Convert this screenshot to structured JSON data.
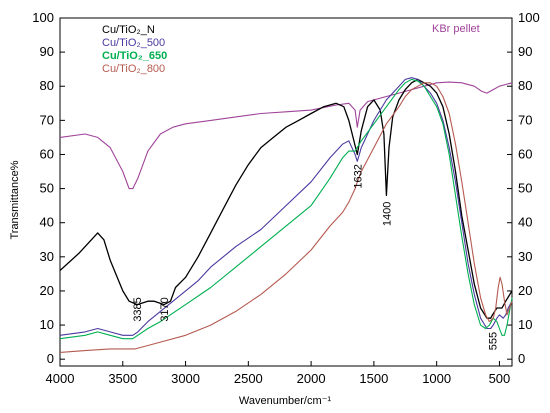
{
  "chart_data": {
    "type": "line",
    "xlabel": "Wavenumber/cm⁻¹",
    "ylabel": "Transmittance%",
    "xlim": [
      4000,
      400
    ],
    "ylim": [
      -2,
      100
    ],
    "x_ticks": [
      4000,
      3500,
      3000,
      2500,
      2000,
      1500,
      1000,
      500
    ],
    "y_ticks": [
      0,
      10,
      20,
      30,
      40,
      50,
      60,
      70,
      80,
      90,
      100
    ],
    "legend_position": "top-left",
    "grid": false,
    "series": [
      {
        "name": "KBr pellet",
        "color": "#a0449a",
        "points": [
          [
            4000,
            65
          ],
          [
            3800,
            66
          ],
          [
            3700,
            65
          ],
          [
            3600,
            62
          ],
          [
            3500,
            55
          ],
          [
            3450,
            50
          ],
          [
            3420,
            50
          ],
          [
            3380,
            53
          ],
          [
            3300,
            61
          ],
          [
            3200,
            66
          ],
          [
            3100,
            68
          ],
          [
            3000,
            69
          ],
          [
            2800,
            70
          ],
          [
            2600,
            71
          ],
          [
            2400,
            72
          ],
          [
            2200,
            72.5
          ],
          [
            2000,
            73
          ],
          [
            1800,
            74.5
          ],
          [
            1700,
            75
          ],
          [
            1650,
            73
          ],
          [
            1632,
            68
          ],
          [
            1610,
            73
          ],
          [
            1550,
            75.5
          ],
          [
            1400,
            77
          ],
          [
            1300,
            78
          ],
          [
            1200,
            79
          ],
          [
            1100,
            80
          ],
          [
            1000,
            81
          ],
          [
            900,
            81.2
          ],
          [
            800,
            81
          ],
          [
            700,
            80
          ],
          [
            640,
            78.5
          ],
          [
            600,
            78
          ],
          [
            550,
            79
          ],
          [
            500,
            80
          ],
          [
            450,
            80.5
          ],
          [
            400,
            81
          ]
        ]
      },
      {
        "name": "Cu/TiO₂_N",
        "color": "#000000",
        "points": [
          [
            4000,
            26
          ],
          [
            3850,
            31
          ],
          [
            3700,
            37
          ],
          [
            3650,
            35
          ],
          [
            3600,
            29
          ],
          [
            3500,
            20
          ],
          [
            3450,
            17
          ],
          [
            3385,
            16
          ],
          [
            3300,
            17
          ],
          [
            3250,
            17
          ],
          [
            3170,
            16
          ],
          [
            3120,
            17
          ],
          [
            3080,
            21
          ],
          [
            3000,
            24
          ],
          [
            2900,
            30
          ],
          [
            2800,
            37
          ],
          [
            2700,
            44
          ],
          [
            2600,
            51
          ],
          [
            2500,
            57
          ],
          [
            2400,
            62
          ],
          [
            2300,
            65
          ],
          [
            2200,
            68
          ],
          [
            2100,
            70
          ],
          [
            2000,
            72
          ],
          [
            1900,
            74
          ],
          [
            1800,
            75
          ],
          [
            1740,
            74
          ],
          [
            1700,
            70
          ],
          [
            1632,
            60
          ],
          [
            1600,
            67
          ],
          [
            1550,
            74
          ],
          [
            1500,
            76
          ],
          [
            1450,
            73
          ],
          [
            1420,
            66
          ],
          [
            1400,
            48
          ],
          [
            1380,
            62
          ],
          [
            1350,
            71
          ],
          [
            1300,
            76
          ],
          [
            1250,
            79
          ],
          [
            1200,
            81
          ],
          [
            1150,
            82
          ],
          [
            1100,
            81
          ],
          [
            1050,
            80
          ],
          [
            1000,
            78
          ],
          [
            950,
            74
          ],
          [
            900,
            66
          ],
          [
            850,
            55
          ],
          [
            800,
            42
          ],
          [
            750,
            32
          ],
          [
            700,
            22
          ],
          [
            650,
            15
          ],
          [
            600,
            12
          ],
          [
            570,
            12
          ],
          [
            555,
            13
          ],
          [
            520,
            15
          ],
          [
            480,
            15
          ],
          [
            450,
            17
          ],
          [
            400,
            20
          ]
        ]
      },
      {
        "name": "Cu/TiO₂_500",
        "color": "#4a3aa0",
        "points": [
          [
            4000,
            7
          ],
          [
            3800,
            8
          ],
          [
            3700,
            9
          ],
          [
            3600,
            8
          ],
          [
            3500,
            7
          ],
          [
            3420,
            7
          ],
          [
            3380,
            8
          ],
          [
            3300,
            11
          ],
          [
            3200,
            14
          ],
          [
            3100,
            17
          ],
          [
            3000,
            20
          ],
          [
            2900,
            23
          ],
          [
            2800,
            27
          ],
          [
            2600,
            33
          ],
          [
            2400,
            38
          ],
          [
            2200,
            45
          ],
          [
            2000,
            52
          ],
          [
            1850,
            59
          ],
          [
            1750,
            63
          ],
          [
            1700,
            64
          ],
          [
            1650,
            60
          ],
          [
            1632,
            58
          ],
          [
            1600,
            62
          ],
          [
            1550,
            66
          ],
          [
            1500,
            70
          ],
          [
            1400,
            76
          ],
          [
            1300,
            80
          ],
          [
            1250,
            82
          ],
          [
            1200,
            82.5
          ],
          [
            1150,
            82
          ],
          [
            1100,
            80
          ],
          [
            1050,
            78
          ],
          [
            1000,
            75
          ],
          [
            950,
            70
          ],
          [
            900,
            62
          ],
          [
            850,
            52
          ],
          [
            800,
            40
          ],
          [
            750,
            28
          ],
          [
            700,
            19
          ],
          [
            650,
            12
          ],
          [
            600,
            9
          ],
          [
            570,
            9
          ],
          [
            550,
            10
          ],
          [
            520,
            12
          ],
          [
            500,
            13
          ],
          [
            470,
            12
          ],
          [
            450,
            13
          ],
          [
            430,
            15
          ],
          [
            400,
            17
          ]
        ]
      },
      {
        "name": "Cu/TiO₂_650",
        "color": "#00b050",
        "points": [
          [
            4000,
            6
          ],
          [
            3800,
            7
          ],
          [
            3700,
            8
          ],
          [
            3600,
            7
          ],
          [
            3500,
            6
          ],
          [
            3420,
            6
          ],
          [
            3380,
            7
          ],
          [
            3300,
            9
          ],
          [
            3200,
            11
          ],
          [
            3000,
            16
          ],
          [
            2800,
            21
          ],
          [
            2600,
            27
          ],
          [
            2400,
            33
          ],
          [
            2200,
            39
          ],
          [
            2000,
            45
          ],
          [
            1850,
            53
          ],
          [
            1750,
            59
          ],
          [
            1700,
            61
          ],
          [
            1650,
            61
          ],
          [
            1600,
            64
          ],
          [
            1500,
            69
          ],
          [
            1400,
            74
          ],
          [
            1300,
            79
          ],
          [
            1250,
            81
          ],
          [
            1200,
            82
          ],
          [
            1150,
            81.5
          ],
          [
            1100,
            80
          ],
          [
            1050,
            77
          ],
          [
            1000,
            74
          ],
          [
            950,
            69
          ],
          [
            900,
            60
          ],
          [
            850,
            48
          ],
          [
            800,
            36
          ],
          [
            750,
            25
          ],
          [
            700,
            16
          ],
          [
            650,
            10
          ],
          [
            610,
            9
          ],
          [
            580,
            10
          ],
          [
            550,
            12
          ],
          [
            520,
            11
          ],
          [
            500,
            9
          ],
          [
            480,
            7
          ],
          [
            460,
            7
          ],
          [
            440,
            10
          ],
          [
            420,
            14
          ],
          [
            400,
            18
          ]
        ]
      },
      {
        "name": "Cu/TiO₂_800",
        "color": "#b55a50",
        "points": [
          [
            4000,
            2
          ],
          [
            3800,
            2.5
          ],
          [
            3600,
            3
          ],
          [
            3500,
            3
          ],
          [
            3400,
            3
          ],
          [
            3300,
            4
          ],
          [
            3200,
            5
          ],
          [
            3000,
            7
          ],
          [
            2800,
            10
          ],
          [
            2600,
            14
          ],
          [
            2400,
            19
          ],
          [
            2200,
            25
          ],
          [
            2000,
            32
          ],
          [
            1850,
            39
          ],
          [
            1750,
            43
          ],
          [
            1700,
            46
          ],
          [
            1650,
            50
          ],
          [
            1632,
            52
          ],
          [
            1600,
            55
          ],
          [
            1500,
            62
          ],
          [
            1400,
            69
          ],
          [
            1300,
            74
          ],
          [
            1250,
            77
          ],
          [
            1200,
            79
          ],
          [
            1150,
            80
          ],
          [
            1100,
            81
          ],
          [
            1050,
            81
          ],
          [
            1000,
            80
          ],
          [
            950,
            77
          ],
          [
            900,
            72
          ],
          [
            850,
            63
          ],
          [
            800,
            52
          ],
          [
            750,
            40
          ],
          [
            700,
            28
          ],
          [
            650,
            18
          ],
          [
            610,
            13
          ],
          [
            580,
            11
          ],
          [
            550,
            12
          ],
          [
            530,
            15
          ],
          [
            510,
            21
          ],
          [
            495,
            24
          ],
          [
            480,
            22
          ],
          [
            460,
            17
          ],
          [
            440,
            13
          ],
          [
            420,
            15
          ],
          [
            400,
            17
          ]
        ]
      }
    ],
    "annotations": [
      {
        "text": "3385",
        "x": 3385,
        "y": 17,
        "dy": -4
      },
      {
        "text": "3170",
        "x": 3170,
        "y": 17,
        "dy": -4
      },
      {
        "text": "1632",
        "x": 1632,
        "y": 56,
        "dy": -4
      },
      {
        "text": "1400",
        "x": 1400,
        "y": 45,
        "dy": -4
      },
      {
        "text": "555",
        "x": 555,
        "y": 8,
        "dy": 0
      }
    ]
  }
}
